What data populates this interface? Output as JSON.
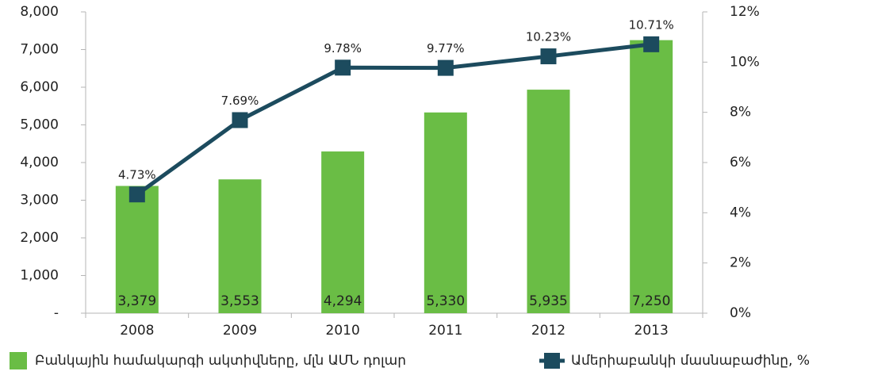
{
  "chart_data": {
    "type": "bar_line",
    "categories": [
      "2008",
      "2009",
      "2010",
      "2011",
      "2012",
      "2013"
    ],
    "series": [
      {
        "name": "Բանկային համակարգի ակտիվները, մլն ԱՄՆ դոլար",
        "type": "bar",
        "color": "#6abd45",
        "values": [
          3379,
          3553,
          4294,
          5330,
          5935,
          7250
        ],
        "value_labels": [
          "3,379",
          "3,553",
          "4,294",
          "5,330",
          "5,935",
          "7,250"
        ]
      },
      {
        "name": "Ամերիաբանկի մասնաբաժինը, %",
        "type": "line",
        "axis": "y2",
        "color": "#1c4b5e",
        "values": [
          4.73,
          7.69,
          9.78,
          9.77,
          10.23,
          10.71
        ],
        "value_labels": [
          "4.73%",
          "7.69%",
          "9.78%",
          "9.77%",
          "10.23%",
          "10.71%"
        ]
      }
    ],
    "ylim": [
      0,
      8000
    ],
    "yticks": [
      {
        "value": 0,
        "label": "-"
      },
      {
        "value": 1000,
        "label": "1,000"
      },
      {
        "value": 2000,
        "label": "2,000"
      },
      {
        "value": 3000,
        "label": "3,000"
      },
      {
        "value": 4000,
        "label": "4,000"
      },
      {
        "value": 5000,
        "label": "5,000"
      },
      {
        "value": 6000,
        "label": "6,000"
      },
      {
        "value": 7000,
        "label": "7,000"
      },
      {
        "value": 8000,
        "label": "8,000"
      }
    ],
    "y2lim": [
      0,
      12
    ],
    "y2ticks": [
      {
        "value": 0,
        "label": "0%"
      },
      {
        "value": 2,
        "label": "2%"
      },
      {
        "value": 4,
        "label": "4%"
      },
      {
        "value": 6,
        "label": "6%"
      },
      {
        "value": 8,
        "label": "8%"
      },
      {
        "value": 10,
        "label": "10%"
      },
      {
        "value": 12,
        "label": "12%"
      }
    ],
    "legend": "bottom"
  }
}
